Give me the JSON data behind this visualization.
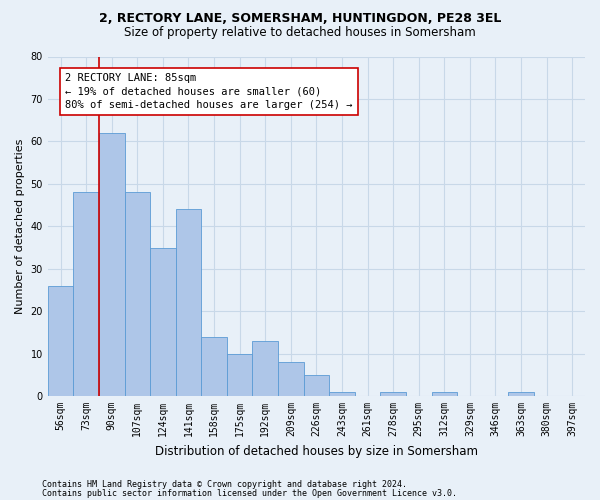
{
  "title1": "2, RECTORY LANE, SOMERSHAM, HUNTINGDON, PE28 3EL",
  "title2": "Size of property relative to detached houses in Somersham",
  "xlabel": "Distribution of detached houses by size in Somersham",
  "ylabel": "Number of detached properties",
  "categories": [
    "56sqm",
    "73sqm",
    "90sqm",
    "107sqm",
    "124sqm",
    "141sqm",
    "158sqm",
    "175sqm",
    "192sqm",
    "209sqm",
    "226sqm",
    "243sqm",
    "261sqm",
    "278sqm",
    "295sqm",
    "312sqm",
    "329sqm",
    "346sqm",
    "363sqm",
    "380sqm",
    "397sqm"
  ],
  "values": [
    26,
    48,
    62,
    48,
    35,
    44,
    14,
    10,
    13,
    8,
    5,
    1,
    0,
    1,
    0,
    1,
    0,
    0,
    1,
    0,
    0
  ],
  "bar_color": "#aec6e8",
  "bar_edge_color": "#5b9bd5",
  "grid_color": "#c8d8e8",
  "background_color": "#e8f0f8",
  "red_line_x": 1.5,
  "annotation_text": "2 RECTORY LANE: 85sqm\n← 19% of detached houses are smaller (60)\n80% of semi-detached houses are larger (254) →",
  "annotation_box_color": "#ffffff",
  "annotation_border_color": "#cc0000",
  "ylim": [
    0,
    80
  ],
  "yticks": [
    0,
    10,
    20,
    30,
    40,
    50,
    60,
    70,
    80
  ],
  "footnote1": "Contains HM Land Registry data © Crown copyright and database right 2024.",
  "footnote2": "Contains public sector information licensed under the Open Government Licence v3.0.",
  "title_fontsize": 9,
  "subtitle_fontsize": 8.5,
  "axis_label_fontsize": 8,
  "tick_fontsize": 7,
  "annotation_fontsize": 7.5,
  "footnote_fontsize": 6
}
